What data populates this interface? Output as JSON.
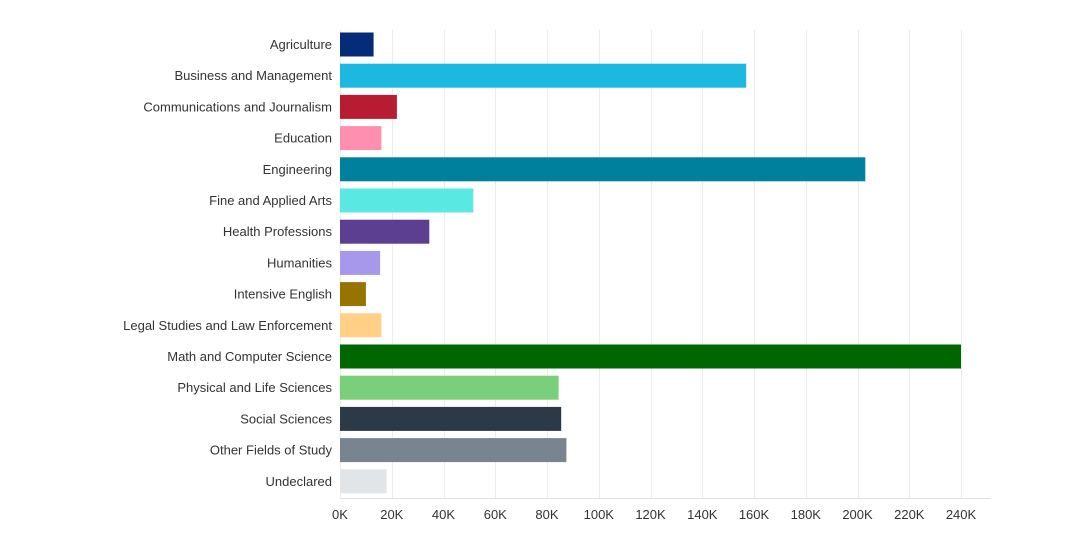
{
  "chart_data": {
    "type": "bar",
    "orientation": "horizontal",
    "title": "",
    "xlabel": "",
    "ylabel": "",
    "xlim": [
      0,
      240000
    ],
    "grid": true,
    "legend": "none",
    "categories": [
      "Agriculture",
      "Business and Management",
      "Communications and Journalism",
      "Education",
      "Engineering",
      "Fine and Applied Arts",
      "Health Professions",
      "Humanities",
      "Intensive English",
      "Legal Studies and Law Enforcement",
      "Math and Computer Science",
      "Physical and Life Sciences",
      "Social Sciences",
      "Other Fields of Study",
      "Undeclared"
    ],
    "values": [
      13000,
      157000,
      22000,
      16000,
      203000,
      51500,
      34500,
      15500,
      10000,
      16000,
      240000,
      84500,
      85500,
      87500,
      18000
    ],
    "colors": [
      "#062b78",
      "#1db8e0",
      "#b81c33",
      "#ff8fb1",
      "#00809c",
      "#5ae8e2",
      "#5c3f90",
      "#a898ec",
      "#977300",
      "#ffd085",
      "#006600",
      "#7acf7a",
      "#2c3a47",
      "#78848f",
      "#e1e5e8"
    ],
    "xticks": [
      0,
      20000,
      40000,
      60000,
      80000,
      100000,
      120000,
      140000,
      160000,
      180000,
      200000,
      220000,
      240000
    ],
    "xtick_labels": [
      "0K",
      "20K",
      "40K",
      "60K",
      "80K",
      "100K",
      "120K",
      "140K",
      "160K",
      "180K",
      "200K",
      "220K",
      "240K"
    ]
  }
}
